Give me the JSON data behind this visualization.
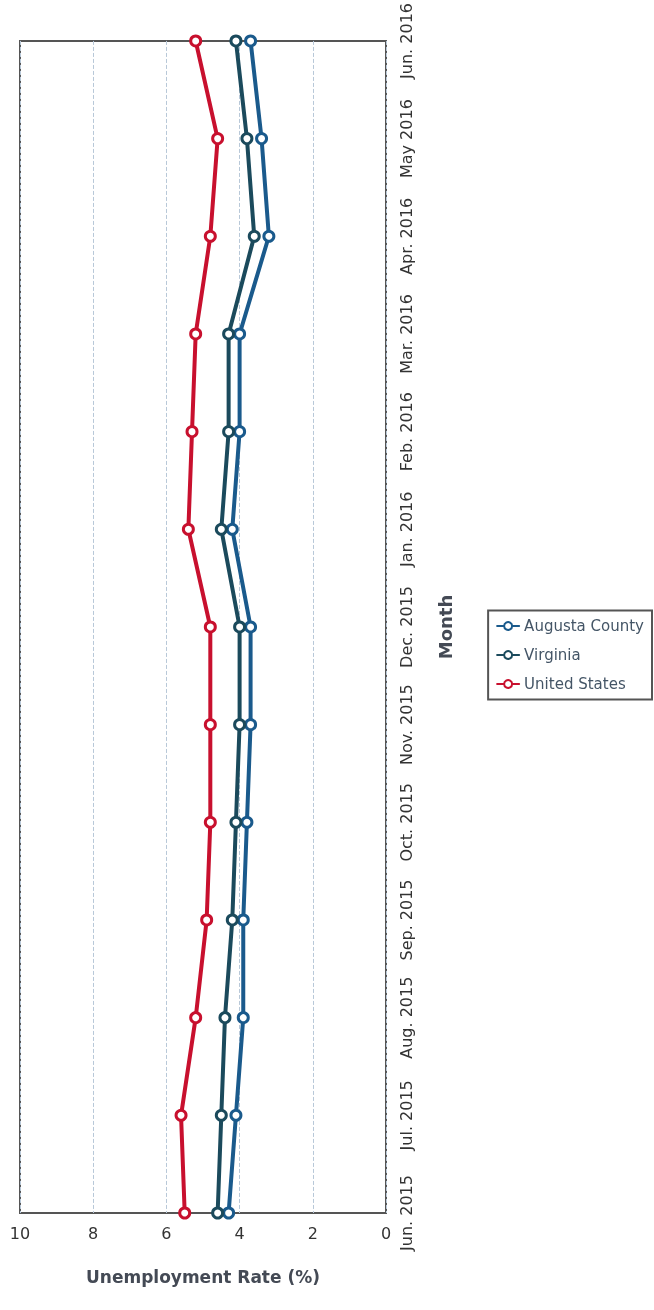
{
  "chart_data": {
    "type": "line",
    "orientation": "horizontal",
    "xlabel": "Unemployment Rate (%)",
    "ylabel": "Month",
    "categories": [
      "Jun. 2016",
      "May 2016",
      "Apr. 2016",
      "Mar. 2016",
      "Feb. 2016",
      "Jan. 2016",
      "Dec. 2015",
      "Nov. 2015",
      "Oct. 2015",
      "Sep. 2015",
      "Aug. 2015",
      "Jul. 2015",
      "Jun. 2015"
    ],
    "series": [
      {
        "name": "Augusta County",
        "color": "#1a5a8c",
        "values": [
          3.7,
          3.4,
          3.2,
          4.0,
          4.0,
          4.2,
          3.7,
          3.7,
          3.8,
          3.9,
          3.9,
          4.1,
          4.3
        ]
      },
      {
        "name": "Virginia",
        "color": "#1b4a5c",
        "values": [
          4.1,
          3.8,
          3.6,
          4.3,
          4.3,
          4.5,
          4.0,
          4.0,
          4.1,
          4.2,
          4.4,
          4.5,
          4.6
        ]
      },
      {
        "name": "United States",
        "color": "#c8102e",
        "values": [
          5.2,
          4.6,
          4.8,
          5.2,
          5.3,
          5.4,
          4.8,
          4.8,
          4.8,
          4.9,
          5.2,
          5.6,
          5.5
        ]
      }
    ],
    "xlim": [
      10,
      0
    ],
    "xticks": [
      10,
      8,
      6,
      4,
      2,
      0
    ],
    "grid": "x",
    "legend": "right",
    "marker": "circle",
    "line_style": "solid"
  }
}
